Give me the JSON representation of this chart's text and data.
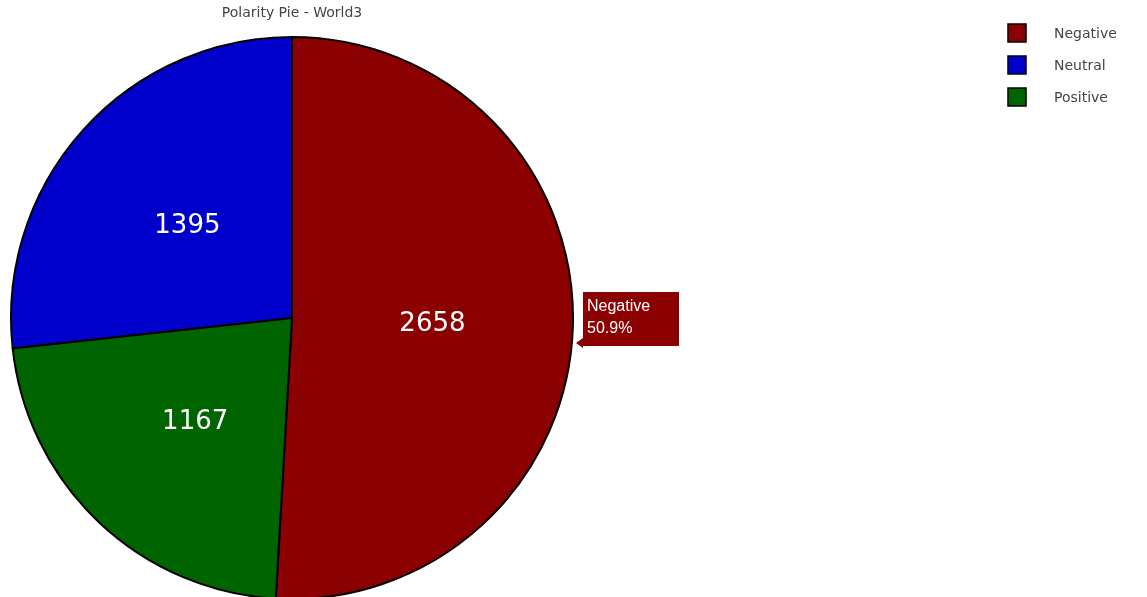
{
  "chart_data": {
    "type": "pie",
    "title": "Polarity Pie - World3",
    "categories": [
      "Negative",
      "Neutral",
      "Positive"
    ],
    "values": [
      2658,
      1395,
      1167
    ],
    "colors": [
      "#8b0000",
      "#0000cd",
      "#006400"
    ],
    "data_labels": true,
    "legend": "top right",
    "annotations": [
      "Negative\n50.9%"
    ]
  }
}
